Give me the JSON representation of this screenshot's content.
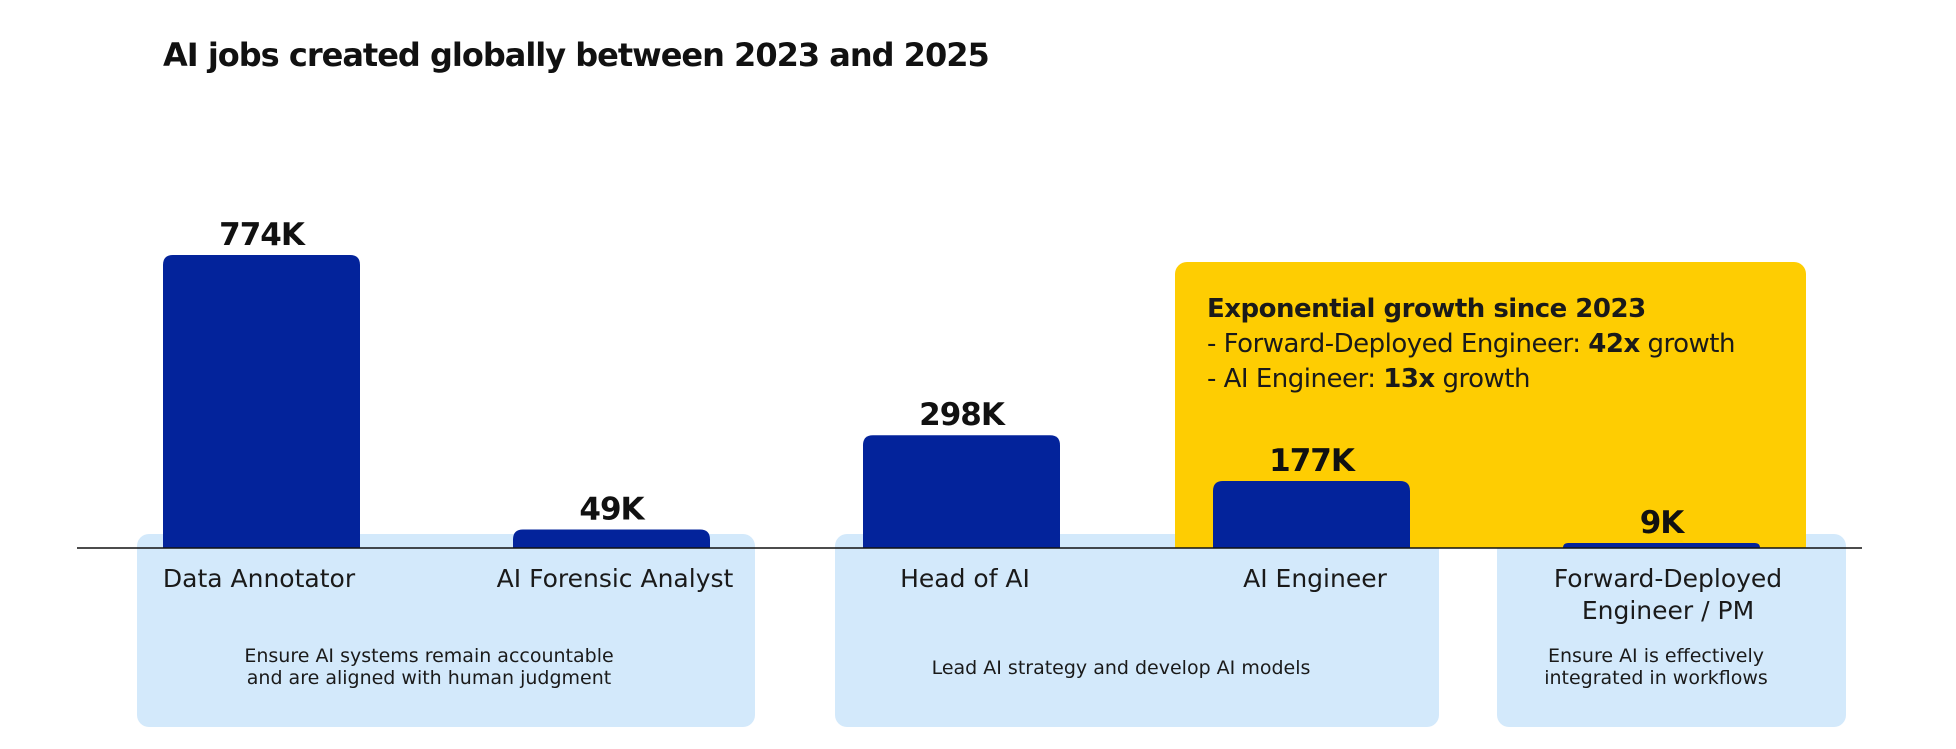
{
  "chart_data": {
    "type": "bar",
    "title": "AI jobs created globally between 2023 and 2025",
    "categories": [
      "Data Annotator",
      "AI Forensic Analyst",
      "Head of AI",
      "AI Engineer",
      "Forward-Deployed Engineer / PM"
    ],
    "category_lines": [
      [
        "Data Annotator"
      ],
      [
        "AI Forensic Analyst"
      ],
      [
        "Head of AI"
      ],
      [
        "AI Engineer"
      ],
      [
        "Forward-Deployed",
        "Engineer / PM"
      ]
    ],
    "values": [
      774,
      49,
      298,
      177,
      9
    ],
    "value_labels": [
      "774K",
      "49K",
      "298K",
      "177K",
      "9K"
    ],
    "unit": "K",
    "ylim": [
      0,
      774
    ],
    "bar_color": "#03239b",
    "groups": [
      {
        "categories": [
          0,
          1
        ],
        "lines": [
          "Ensure AI systems remain accountable",
          "and are aligned with human judgment"
        ]
      },
      {
        "categories": [
          2,
          3
        ],
        "lines": [
          "Lead AI strategy and develop AI models"
        ]
      },
      {
        "categories": [
          4
        ],
        "lines": [
          "Ensure AI is effectively",
          "integrated in workflows"
        ]
      }
    ],
    "group_color": "#d3e9fb",
    "highlight": {
      "categories": [
        3,
        4
      ],
      "color": "#fecd02",
      "heading": "Exponential growth since 2023",
      "items": [
        {
          "prefix": "- Forward-Deployed Engineer: ",
          "value": "42x",
          "suffix": " growth"
        },
        {
          "prefix": "- AI Engineer: ",
          "value": "13x",
          "suffix": " growth"
        }
      ]
    }
  }
}
